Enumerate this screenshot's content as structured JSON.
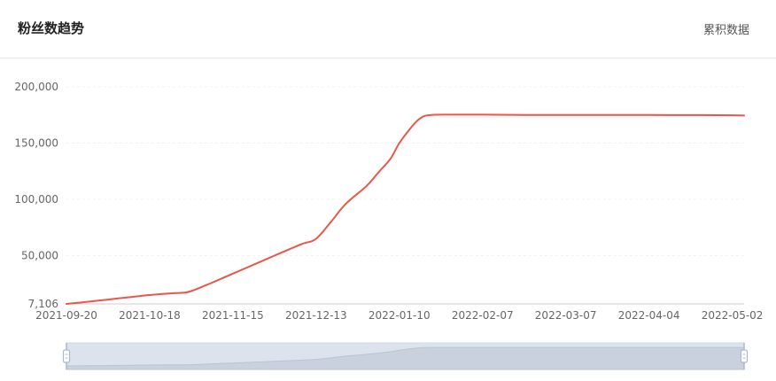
{
  "header": {
    "title": "粉丝数趋势",
    "action_label": "累积数据"
  },
  "colors": {
    "line": "#e8574a",
    "grid": "#f0f0f0",
    "axis": "#cccccc",
    "zoom_bg": "#dde3ec",
    "zoom_fill": "#c8d1dd",
    "zoom_handle": "#a9b8cb"
  },
  "chart_data": {
    "type": "line",
    "title": "",
    "xlabel": "",
    "ylabel": "",
    "ylim": [
      7106,
      200000
    ],
    "y_ticks": [
      {
        "value": 7106,
        "label": "7,106"
      },
      {
        "value": 50000,
        "label": "50,000"
      },
      {
        "value": 100000,
        "label": "100,000"
      },
      {
        "value": 150000,
        "label": "150,000"
      },
      {
        "value": 200000,
        "label": "200,000"
      }
    ],
    "xlim": [
      "2021-09-20",
      "2022-05-06"
    ],
    "x_ticks": [
      "2021-09-20",
      "2021-10-18",
      "2021-11-15",
      "2021-12-13",
      "2022-01-10",
      "2022-02-07",
      "2022-03-07",
      "2022-04-04",
      "2022-05-02"
    ],
    "grid": true,
    "legend": "none",
    "series": [
      {
        "x": [
          "2021-09-20",
          "2021-09-27",
          "2021-10-04",
          "2021-10-11",
          "2021-10-18",
          "2021-10-25",
          "2021-10-29",
          "2021-11-01",
          "2021-11-08",
          "2021-11-15",
          "2021-11-22",
          "2021-11-29",
          "2021-12-06",
          "2021-12-09",
          "2021-12-13",
          "2021-12-18",
          "2021-12-23",
          "2021-12-30",
          "2022-01-03",
          "2022-01-07",
          "2022-01-10",
          "2022-01-14",
          "2022-01-17",
          "2022-01-20",
          "2022-01-27",
          "2022-02-07",
          "2022-02-21",
          "2022-03-07",
          "2022-03-21",
          "2022-04-04",
          "2022-04-18",
          "2022-05-02",
          "2022-05-06"
        ],
        "y": [
          7106,
          9000,
          11000,
          13000,
          15000,
          16500,
          17000,
          18500,
          26000,
          34000,
          42000,
          50000,
          58000,
          61000,
          65000,
          80000,
          96000,
          112000,
          124000,
          136000,
          150000,
          164000,
          172000,
          174800,
          175300,
          175300,
          175000,
          175000,
          175000,
          175000,
          174900,
          174700,
          174500
        ]
      }
    ]
  }
}
